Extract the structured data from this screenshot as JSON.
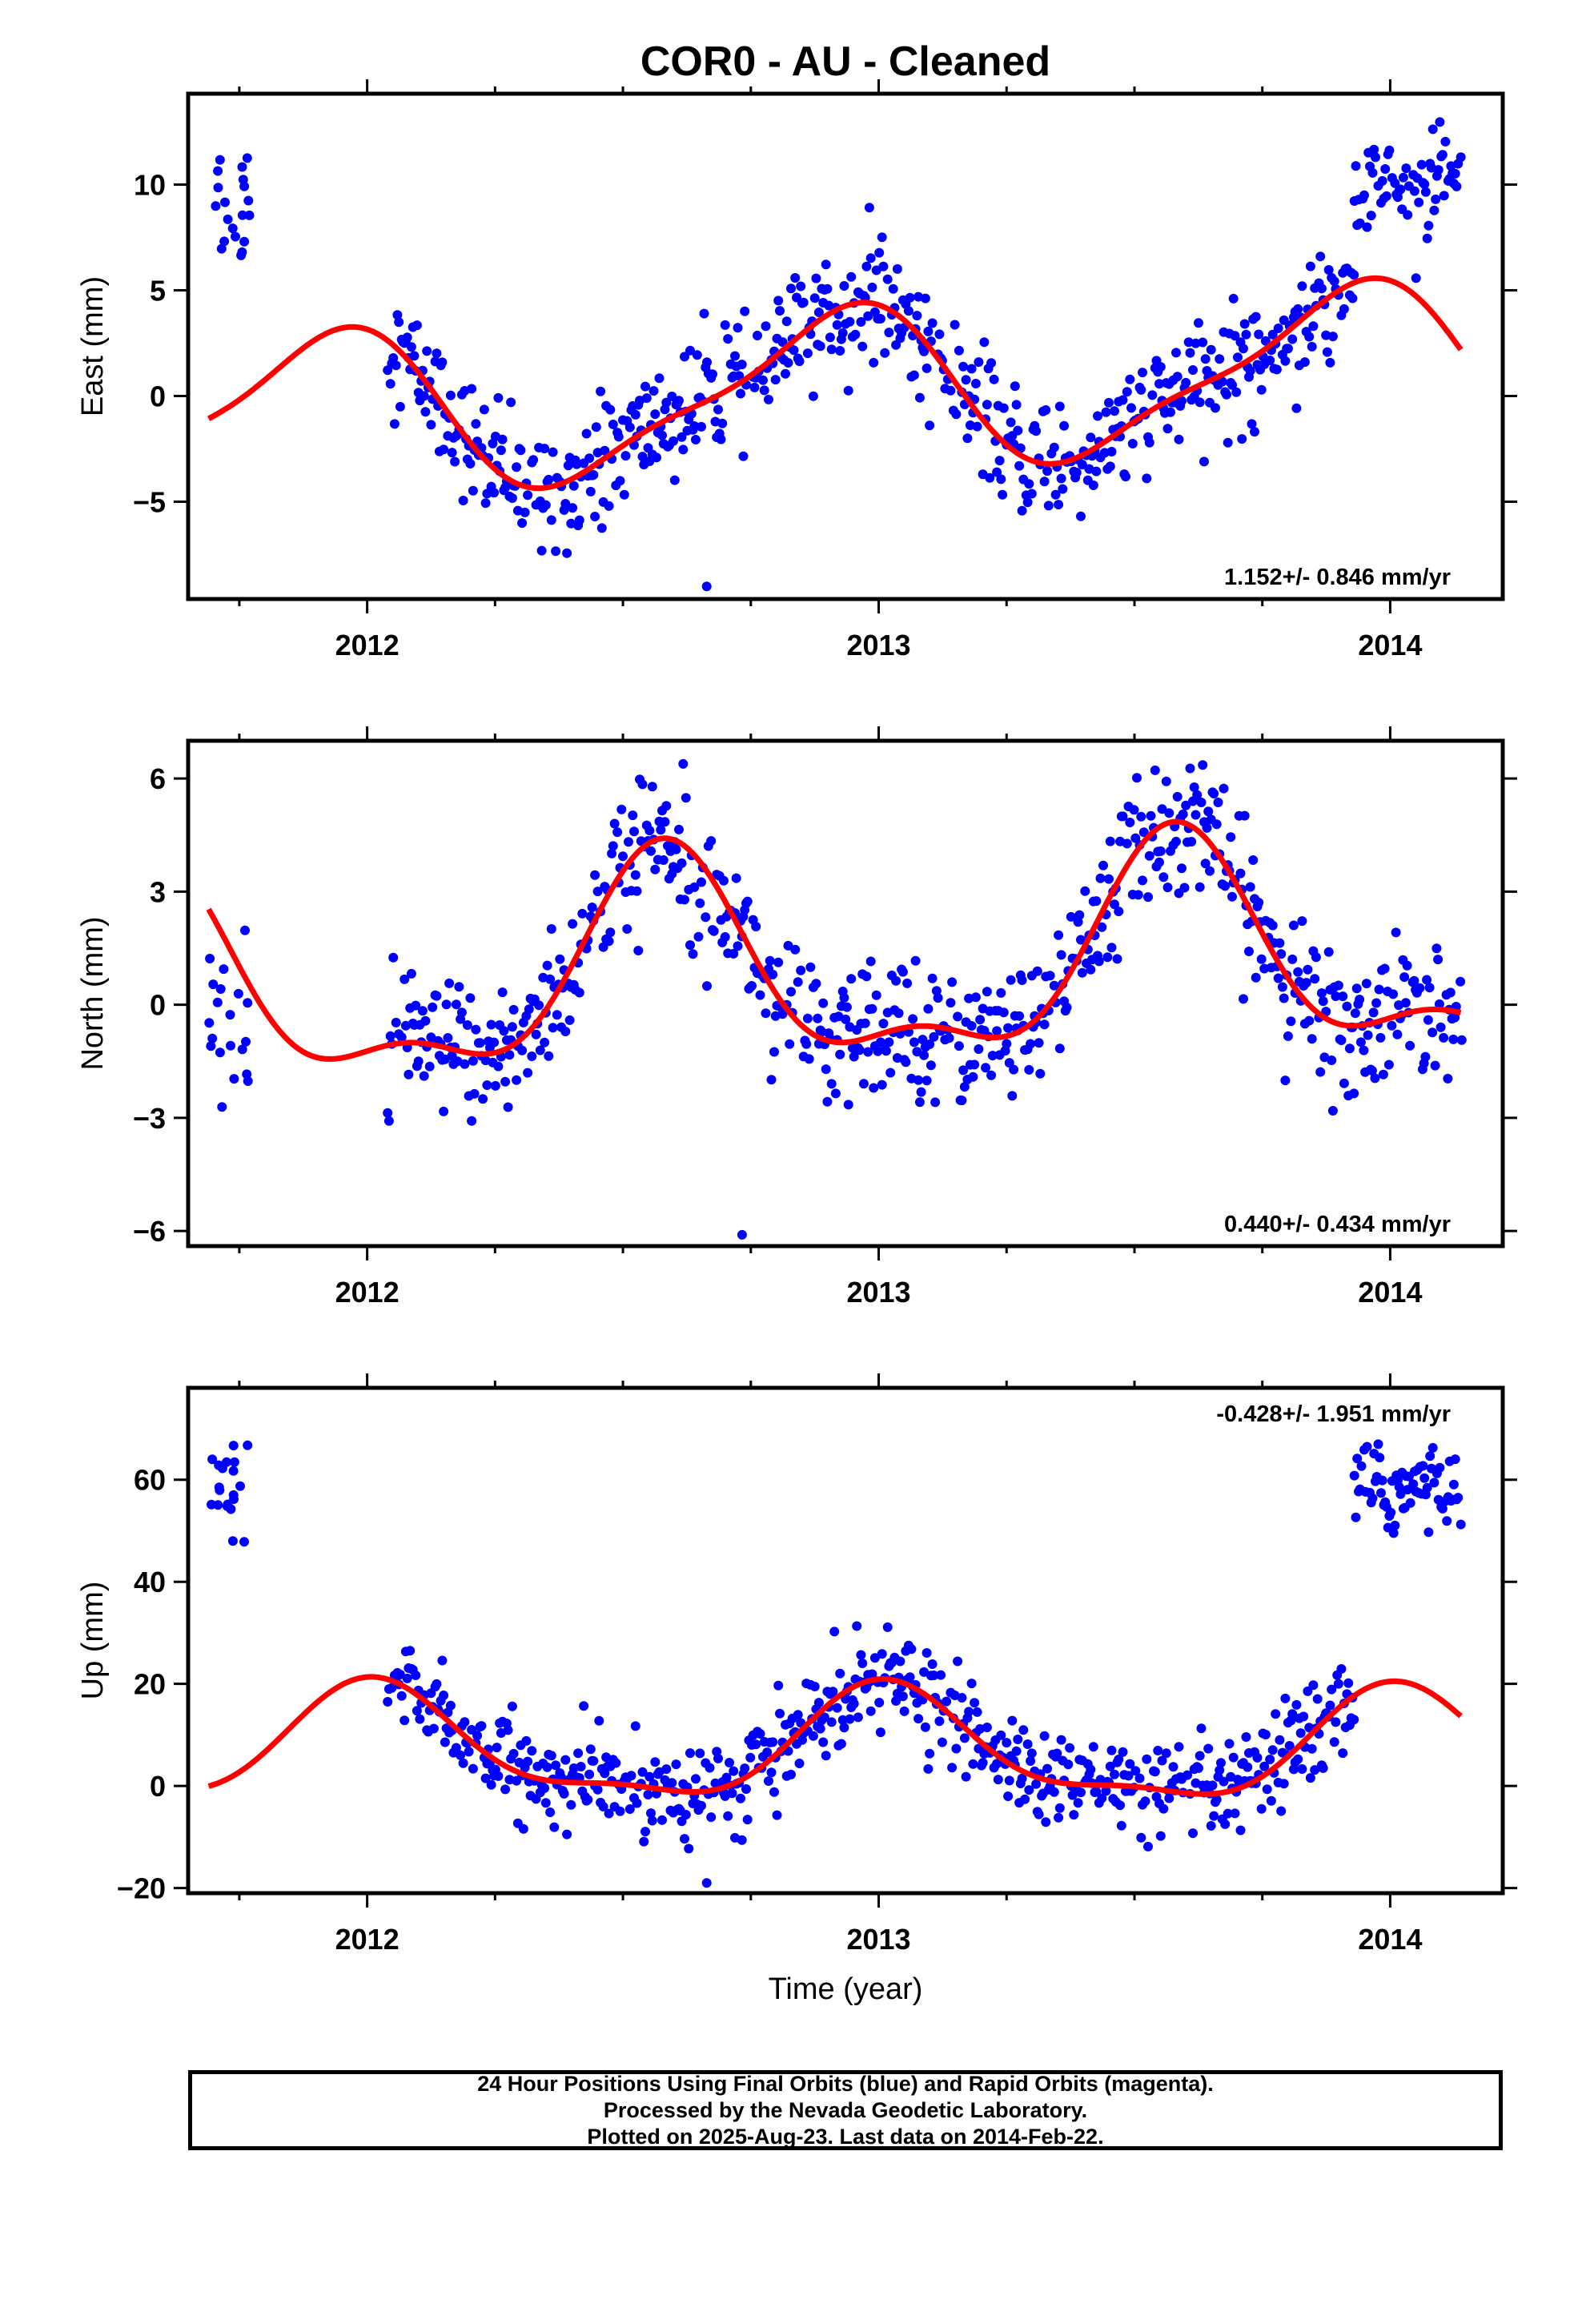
{
  "title": "COR0  - AU - Cleaned",
  "footer": {
    "line1": "24 Hour Positions Using Final Orbits (blue) and Rapid Orbits (magenta).",
    "line2": "Processed by the Nevada Geodetic Laboratory.",
    "line3": "Plotted on 2025-Aug-23. Last data on 2014-Feb-22."
  },
  "colors": {
    "points": "#0000ff",
    "model": "#ff0000",
    "axes": "#000000"
  },
  "chart_data": [
    {
      "type": "scatter",
      "component": "east",
      "ylabel": "East (mm)",
      "xlabel": "",
      "xlim": [
        2011.65,
        2014.22
      ],
      "ylim": [
        -9.6,
        14.3
      ],
      "xticks": [
        2012,
        2013,
        2014
      ],
      "yticks": [
        -5,
        0,
        5,
        10
      ],
      "rate_label": "1.152+/- 0.846 mm/yr",
      "rate_position": "bottom-right",
      "grid": false,
      "model": {
        "trend_value": 0.3,
        "trend_rate": 1.152,
        "annual_amplitude": 3.6,
        "annual_peak_phase": 0.91,
        "semiannual_amplitude": 1.0,
        "semiannual_peak_phase": 0.02
      },
      "early_cluster": {
        "x_range": [
          2011.69,
          2011.77
        ],
        "y_mean": 9.2,
        "spread": 1.6
      },
      "late_cluster": {
        "x_range": [
          2013.93,
          2014.14
        ],
        "y_mean": 10.0,
        "spread": 1.1
      },
      "main_range": [
        2012.04,
        2013.93
      ],
      "noise_sd": 1.4,
      "outlier_y_min": -9.0
    },
    {
      "type": "scatter",
      "component": "north",
      "ylabel": "North (mm)",
      "xlabel": "",
      "xlim": [
        2011.65,
        2014.22
      ],
      "ylim": [
        -6.4,
        7.0
      ],
      "xticks": [
        2012,
        2013,
        2014
      ],
      "yticks": [
        -6,
        -3,
        0,
        3,
        6
      ],
      "rate_label": "0.440+/- 0.434 mm/yr",
      "rate_position": "bottom-right",
      "grid": false,
      "model": {
        "trend_value": 0.9,
        "trend_rate": 0.44,
        "annual_amplitude": 2.6,
        "annual_peak_phase": 0.58,
        "semiannual_amplitude": 1.1,
        "semiannual_peak_phase": 0.08
      },
      "early_cluster": {
        "x_range": [
          2011.69,
          2011.77
        ],
        "y_mean": -0.5,
        "spread": 1.3
      },
      "late_cluster": null,
      "main_range": [
        2012.04,
        2014.14
      ],
      "noise_sd": 0.9,
      "outlier_y_min": -6.1
    },
    {
      "type": "scatter",
      "component": "up",
      "ylabel": "Up (mm)",
      "xlabel": "Time (year)",
      "xlim": [
        2011.65,
        2014.22
      ],
      "ylim": [
        -21,
        78
      ],
      "xticks": [
        2012,
        2013,
        2014
      ],
      "yticks": [
        -20,
        0,
        20,
        40,
        60
      ],
      "rate_label": "-0.428+/- 1.951 mm/yr",
      "rate_position": "top-right",
      "grid": false,
      "model": {
        "trend_value": 7,
        "trend_rate": -0.428,
        "annual_amplitude": 10.5,
        "annual_peak_phase": 0.02,
        "semiannual_amplitude": 3.5,
        "semiannual_peak_phase": 0.0
      },
      "early_cluster": {
        "x_range": [
          2011.69,
          2011.77
        ],
        "y_mean": 57.5,
        "spread": 5.5
      },
      "late_cluster": {
        "x_range": [
          2013.93,
          2014.14
        ],
        "y_mean": 58.0,
        "spread": 4.5
      },
      "main_range": [
        2012.04,
        2013.93
      ],
      "noise_sd": 4.5,
      "outlier_y_min": -19
    }
  ]
}
